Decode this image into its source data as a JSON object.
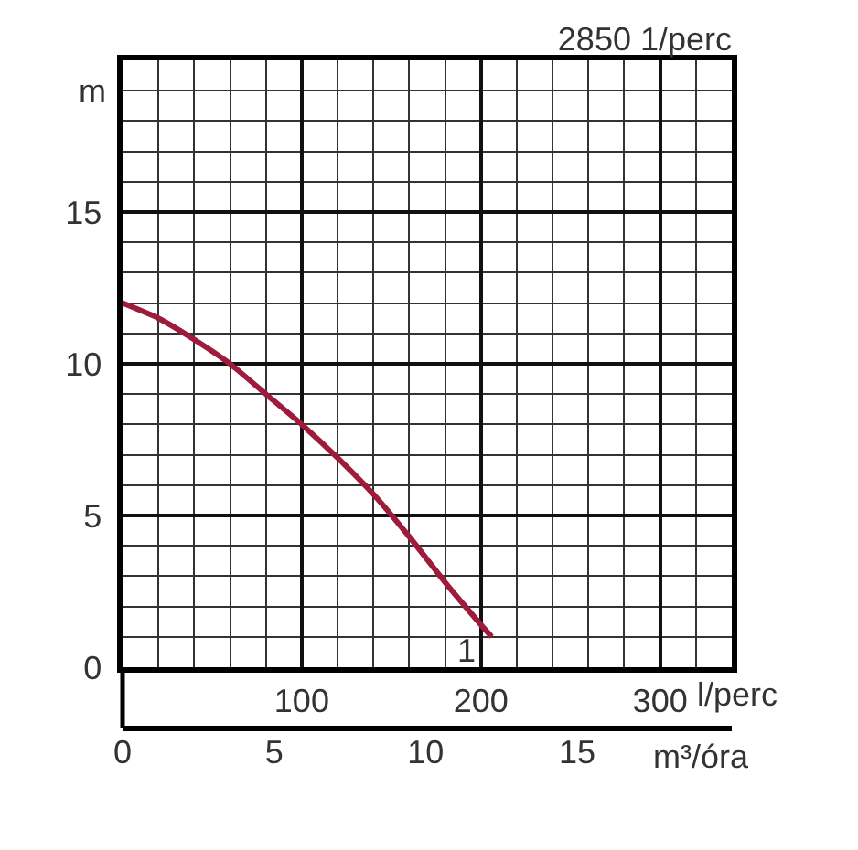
{
  "chart_data": {
    "type": "line",
    "title": "2850 1/perc",
    "xlabel": "l/perc",
    "x2label": "m³/óra",
    "ylabel": "m",
    "xlim": [
      0,
      340
    ],
    "xticks": [
      {
        "value": 20,
        "label": null
      },
      {
        "value": 40,
        "label": null
      },
      {
        "value": 60,
        "label": null
      },
      {
        "value": 80,
        "label": null
      },
      100,
      {
        "value": 120,
        "label": null
      },
      {
        "value": 140,
        "label": null
      },
      {
        "value": 160,
        "label": null
      },
      {
        "value": 180,
        "label": null
      },
      200,
      {
        "value": 220,
        "label": null
      },
      {
        "value": 240,
        "label": null
      },
      {
        "value": 260,
        "label": null
      },
      {
        "value": 280,
        "label": null
      },
      300,
      {
        "value": 320,
        "label": null
      }
    ],
    "x2lim": [
      0,
      20.1
    ],
    "x2ticks": [
      0,
      5,
      10,
      15
    ],
    "ylim": [
      0,
      20
    ],
    "yticks": [
      0,
      {
        "value": 1,
        "label": null
      },
      {
        "value": 2,
        "label": null
      },
      {
        "value": 3,
        "label": null
      },
      {
        "value": 4,
        "label": null
      },
      5,
      {
        "value": 6,
        "label": null
      },
      {
        "value": 7,
        "label": null
      },
      {
        "value": 8,
        "label": null
      },
      {
        "value": 9,
        "label": null
      },
      10,
      {
        "value": 11,
        "label": null
      },
      {
        "value": 12,
        "label": null
      },
      {
        "value": 13,
        "label": null
      },
      {
        "value": 14,
        "label": null
      },
      15,
      {
        "value": 16,
        "label": null
      },
      {
        "value": 17,
        "label": null
      },
      {
        "value": 18,
        "label": null
      },
      {
        "value": 19,
        "label": null
      }
    ],
    "grid": true,
    "x": [
      0,
      20,
      40,
      60,
      80,
      100,
      120,
      140,
      160,
      180,
      200,
      206
    ],
    "series": [
      {
        "name": "1",
        "color": "#9e1b3c",
        "values": [
          12.0,
          11.5,
          10.8,
          10.0,
          9.0,
          8.0,
          6.9,
          5.7,
          4.3,
          2.8,
          1.4,
          1.0
        ]
      }
    ]
  }
}
